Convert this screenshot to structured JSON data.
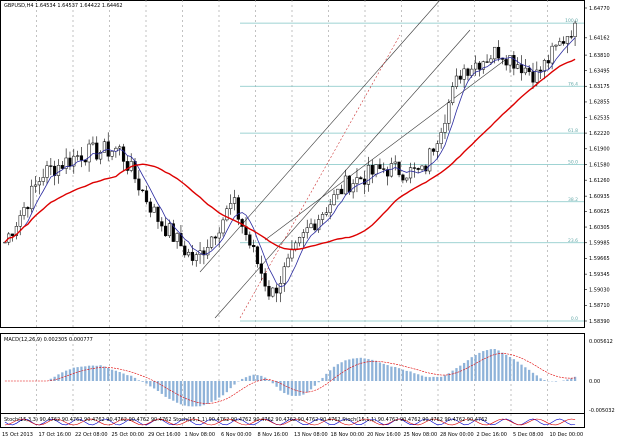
{
  "header": {
    "symbol_line": "GBPUSD,H4  1.64534 1.64537 1.64422 1.64462"
  },
  "macd": {
    "label": "MACD(12,26,9) 0.002305 0.000777",
    "ticks": [
      "0.005612",
      "0.00",
      "-0.005032"
    ]
  },
  "stoch": {
    "label": "Stoch(15,3,3) 90.4762 90.4762 90.4762 90.4762 90.4762 90.4762 Stoch(15,1,1) 90.4762 90.4762 90.4762 90.4762 90.4762 90.4762 Stoch(15,1,1) 90.4762 90.4762 90.4762 90.4762 90.4762"
  },
  "price_axis": {
    "ticks": [
      "1.64770",
      "1.64162",
      "1.63810",
      "1.63495",
      "1.63175",
      "1.62855",
      "1.62535",
      "1.62220",
      "1.61900",
      "1.61580",
      "1.61260",
      "1.60935",
      "1.60625",
      "1.60305",
      "1.59985",
      "1.59665",
      "1.59345",
      "1.59030",
      "1.58710",
      "1.58390"
    ]
  },
  "fib_levels": [
    {
      "label": "100.0",
      "price": 1.64462
    },
    {
      "label": "76.4",
      "price": 1.63175
    },
    {
      "label": "61.8",
      "price": 1.6222
    },
    {
      "label": "50.0",
      "price": 1.6158
    },
    {
      "label": "38.2",
      "price": 1.6082
    },
    {
      "label": "23.6",
      "price": 1.59985
    },
    {
      "label": "0.0",
      "price": 1.5839
    }
  ],
  "time_axis": {
    "labels": [
      "15 Oct 2013",
      "17 Oct 16:00",
      "22 Oct 08:00",
      "25 Oct 00:00",
      "29 Oct 16:00",
      "1 Nov 08:00",
      "6 Nov 00:00",
      "8 Nov 16:00",
      "13 Nov 08:00",
      "18 Nov 00:00",
      "20 Nov 16:00",
      "25 Nov 08:00",
      "28 Nov 00:00",
      "2 Dec 16:00",
      "5 Dec 08:00",
      "10 Dec 00:00"
    ]
  },
  "colors": {
    "candle": "#000000",
    "ma_fast": "#2a2aa0",
    "ma_slow": "#dd0000",
    "fib": "#7fc4c4",
    "channel": "#3a3a3a",
    "macd_hist": "#8fb3d9",
    "macd_signal": "#e00000"
  },
  "chart_data": {
    "type": "candlestick",
    "symbol": "GBPUSD",
    "timeframe": "H4",
    "ohlc_last": {
      "open": 1.64534,
      "high": 1.64537,
      "low": 1.64422,
      "close": 1.64462
    },
    "ylim": [
      1.5839,
      1.6477
    ],
    "close_path": [
      {
        "t": "15 Oct 2013",
        "price": 1.6
      },
      {
        "t": "17 Oct 16:00",
        "price": 1.614
      },
      {
        "t": "22 Oct 08:00",
        "price": 1.618
      },
      {
        "t": "25 Oct 00:00",
        "price": 1.619
      },
      {
        "t": "29 Oct 16:00",
        "price": 1.605
      },
      {
        "t": "1 Nov 08:00",
        "price": 1.596
      },
      {
        "t": "6 Nov 00:00",
        "price": 1.608
      },
      {
        "t": "8 Nov 16:00",
        "price": 1.589
      },
      {
        "t": "13 Nov 08:00",
        "price": 1.603
      },
      {
        "t": "18 Nov 00:00",
        "price": 1.612
      },
      {
        "t": "20 Nov 16:00",
        "price": 1.615
      },
      {
        "t": "25 Nov 08:00",
        "price": 1.614
      },
      {
        "t": "28 Nov 00:00",
        "price": 1.635
      },
      {
        "t": "2 Dec 16:00",
        "price": 1.639
      },
      {
        "t": "5 Dec 08:00",
        "price": 1.634
      },
      {
        "t": "10 Dec 00:00",
        "price": 1.6446
      }
    ]
  }
}
